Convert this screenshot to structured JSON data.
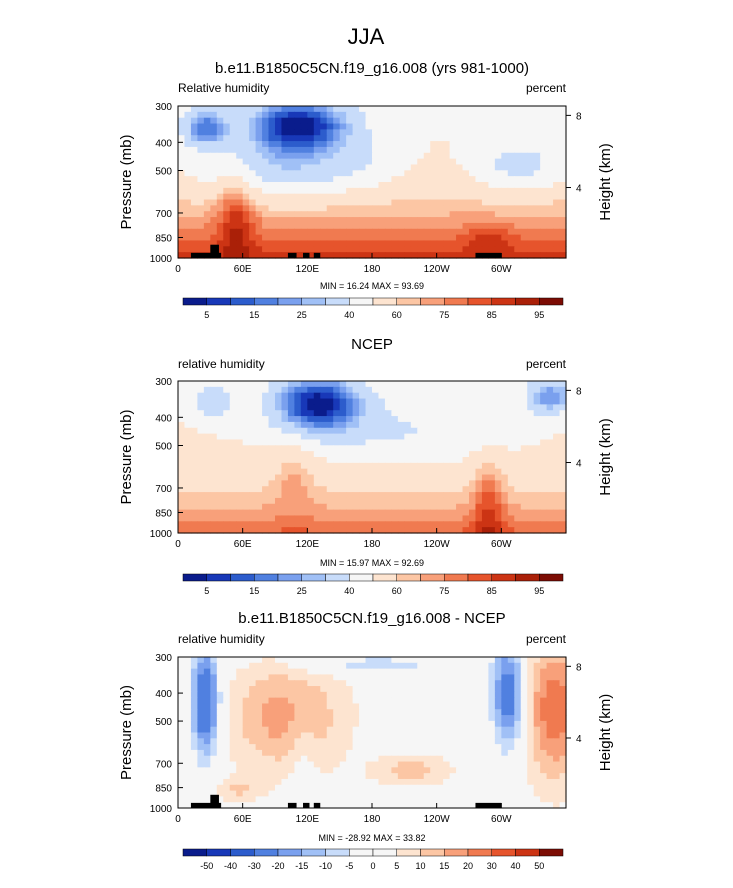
{
  "main_title": "JJA",
  "lon_ticks": [
    "0",
    "60E",
    "120E",
    "180",
    "120W",
    "60W"
  ],
  "lon_tick_values": [
    0,
    60,
    120,
    180,
    240,
    300
  ],
  "pressure_ticks": [
    "300",
    "400",
    "500",
    "700",
    "850",
    "1000"
  ],
  "pressure_tick_values": [
    300,
    400,
    500,
    700,
    850,
    1000
  ],
  "height_ticks": [
    "8",
    "4"
  ],
  "height_tick_values": [
    8,
    4
  ],
  "y_left_label": "Pressure (mb)",
  "y_right_label": "Height (km)",
  "chart_data": [
    {
      "type": "heatmap",
      "title": "b.e11.B1850C5CN.f19_g16.008 (yrs 981-1000)",
      "left_label": "Relative humidity",
      "right_label": "percent",
      "stats": "MIN = 16.24   MAX = 93.69",
      "colorbar_labels": [
        "5",
        "15",
        "25",
        "40",
        "60",
        "75",
        "85",
        "95"
      ],
      "xlim": [
        0,
        360
      ],
      "ylim": [
        1000,
        300
      ],
      "colors": [
        "#0a1c8c",
        "#1838b8",
        "#2c5ccc",
        "#5080e0",
        "#7aa0ee",
        "#a0c0f6",
        "#c8dcfa",
        "#f6f6f6",
        "#fde4d0",
        "#fcc6a4",
        "#f8a07a",
        "#f07a50",
        "#e6542c",
        "#cc3414",
        "#aa2008",
        "#7c0c04"
      ]
    },
    {
      "type": "heatmap",
      "title": "NCEP",
      "left_label": "relative humidity",
      "right_label": "percent",
      "stats": "MIN = 15.97   MAX = 92.69",
      "colorbar_labels": [
        "5",
        "15",
        "25",
        "40",
        "60",
        "75",
        "85",
        "95"
      ],
      "xlim": [
        0,
        360
      ],
      "ylim": [
        1000,
        300
      ],
      "colors": [
        "#0a1c8c",
        "#1838b8",
        "#2c5ccc",
        "#5080e0",
        "#7aa0ee",
        "#a0c0f6",
        "#c8dcfa",
        "#f6f6f6",
        "#fde4d0",
        "#fcc6a4",
        "#f8a07a",
        "#f07a50",
        "#e6542c",
        "#cc3414",
        "#aa2008",
        "#7c0c04"
      ]
    },
    {
      "type": "heatmap",
      "title": "b.e11.B1850C5CN.f19_g16.008 - NCEP",
      "left_label": "relative humidity",
      "right_label": "percent",
      "stats": "MIN = -28.92   MAX = 33.82",
      "colorbar_labels": [
        "-50",
        "-40",
        "-30",
        "-20",
        "-15",
        "-10",
        "-5",
        "0",
        "5",
        "10",
        "15",
        "20",
        "30",
        "40",
        "50"
      ],
      "xlim": [
        0,
        360
      ],
      "ylim": [
        1000,
        300
      ],
      "colors": [
        "#0a1c8c",
        "#1838b8",
        "#2c5ccc",
        "#5080e0",
        "#7aa0ee",
        "#a0c0f6",
        "#c8dcfa",
        "#f6f6f6",
        "#f6f6f6",
        "#fde4d0",
        "#fcc6a4",
        "#f8a07a",
        "#f07a50",
        "#e6542c",
        "#cc3414",
        "#7c0c04"
      ]
    }
  ]
}
